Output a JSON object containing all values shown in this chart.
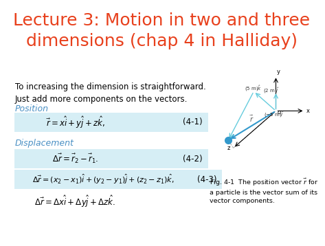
{
  "title_line1": "Lecture 3: Motion in two and three",
  "title_line2": "dimensions (chap 4 in Halliday)",
  "title_color": "#e8401c",
  "title_fontsize": 18,
  "bg_color": "#ffffff",
  "intro_text": "To increasing the dimension is straightforward.\nJust add more components on the vectors.",
  "intro_fontsize": 8.5,
  "section_position": "Position",
  "section_displacement": "Displacement",
  "section_color": "#4a90c4",
  "section_fontsize": 9,
  "eq1_text": "$\\vec{r} = x\\hat{i} + y\\hat{j} + z\\hat{k},$",
  "eq1_num": "(4-1)",
  "eq2_text": "$\\Delta\\vec{r} = \\vec{r}_2 - \\vec{r}_1.$",
  "eq2_num": "(4-2)",
  "eq3_text": "$\\Delta\\vec{r} = (x_2 - x_1)\\hat{i} + (y_2 - y_1)\\hat{j} + (z_2 - z_1)\\hat{k},$",
  "eq3_num": "(4-3)",
  "eq4_text": "$\\Delta\\vec{r} = \\Delta x\\hat{i} + \\Delta y\\hat{j} + \\Delta z\\hat{k}.$",
  "eq_box_color": "#d6eef5",
  "eq_fontsize": 8.5,
  "fig_caption": "Fig. 4-1  The position vector $\\vec{r}$ for\na particle is the vector sum of its\nvector components.",
  "fig_caption_fontsize": 6.8
}
